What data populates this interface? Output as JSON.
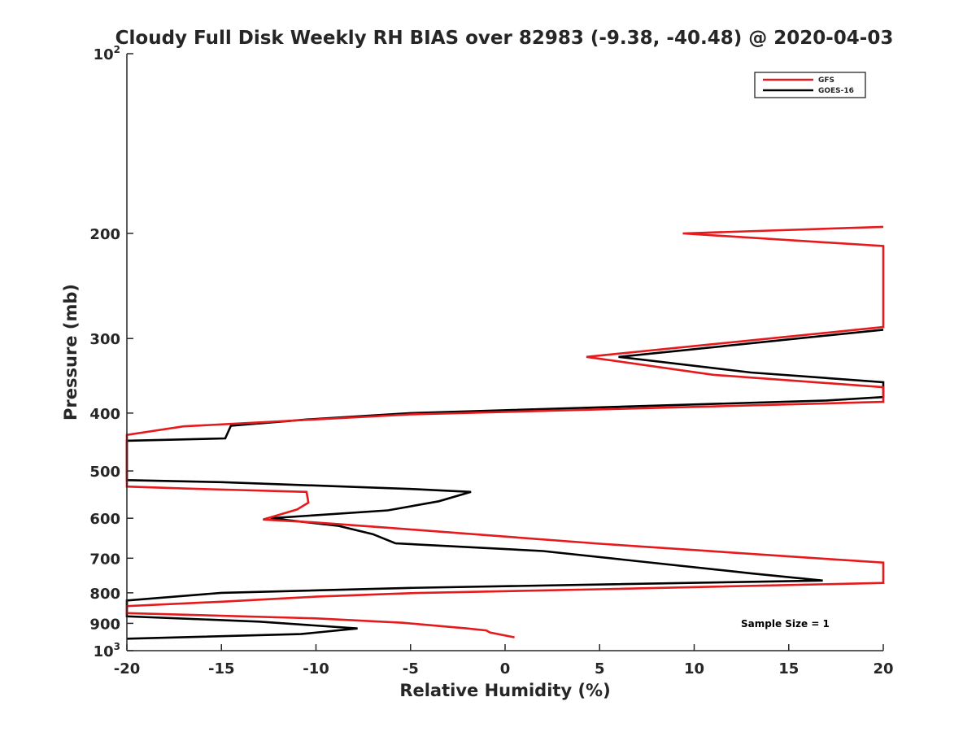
{
  "chart_data": {
    "type": "line",
    "title": "Cloudy Full Disk Weekly RH BIAS over 82983 (-9.38, -40.48) @ 2020-04-03",
    "xlabel": "Relative Humidity (%)",
    "ylabel": "Pressure (mb)",
    "xlim": [
      -20,
      20
    ],
    "ylim": [
      100,
      1000
    ],
    "y_scale": "log",
    "y_reversed": true,
    "grid": false,
    "x_ticks": [
      "-20",
      "-15",
      "-10",
      "-5",
      "0",
      "5",
      "10",
      "15",
      "20"
    ],
    "y_ticks": [
      {
        "value": 100,
        "base": "10",
        "exp": "2"
      },
      {
        "value": 200,
        "label": "200"
      },
      {
        "value": 300,
        "label": "300"
      },
      {
        "value": 400,
        "label": "400"
      },
      {
        "value": 500,
        "label": "500"
      },
      {
        "value": 600,
        "label": "600"
      },
      {
        "value": 700,
        "label": "700"
      },
      {
        "value": 800,
        "label": "800"
      },
      {
        "value": 900,
        "label": "900"
      },
      {
        "value": 1000,
        "base": "10",
        "exp": "3"
      }
    ],
    "legend": {
      "position": "top-right"
    },
    "annotation": "Sample Size = 1",
    "series": [
      {
        "name": "GFS",
        "color": "#e41a1c",
        "points": [
          [
            20,
            195
          ],
          [
            9.4,
            200
          ],
          [
            20,
            210
          ],
          [
            20,
            287
          ],
          [
            4.3,
            322
          ],
          [
            11,
            345
          ],
          [
            20,
            362
          ],
          [
            20,
            383
          ],
          [
            -5,
            402
          ],
          [
            -14.5,
            417
          ],
          [
            -17,
            421
          ],
          [
            -20,
            435
          ],
          [
            -20,
            531
          ],
          [
            -17,
            535
          ],
          [
            -10.5,
            542
          ],
          [
            -10.4,
            565
          ],
          [
            -11,
            580
          ],
          [
            -12.8,
            603
          ],
          [
            -10,
            610
          ],
          [
            -6,
            623
          ],
          [
            5,
            662
          ],
          [
            17,
            702
          ],
          [
            20,
            712
          ],
          [
            20,
            770
          ],
          [
            5,
            789
          ],
          [
            -5,
            801
          ],
          [
            -10,
            812
          ],
          [
            -15,
            828
          ],
          [
            -20,
            842
          ],
          [
            -20,
            865
          ],
          [
            -10,
            883
          ],
          [
            -5.4,
            898
          ],
          [
            -2,
            918
          ],
          [
            -1,
            925
          ],
          [
            -0.8,
            932
          ],
          [
            0.5,
            950
          ]
        ]
      },
      {
        "name": "GOES-16",
        "color": "#000000",
        "points": [
          [
            20,
            290
          ],
          [
            6,
            322
          ],
          [
            13,
            342
          ],
          [
            20,
            355
          ],
          [
            20,
            376
          ],
          [
            17,
            381
          ],
          [
            -5,
            400
          ],
          [
            -10.5,
            410
          ],
          [
            -14.5,
            420
          ],
          [
            -14.8,
            441
          ],
          [
            -20,
            445
          ],
          [
            -20,
            518
          ],
          [
            -15,
            522
          ],
          [
            -5,
            536
          ],
          [
            -1.8,
            542
          ],
          [
            -3.5,
            562
          ],
          [
            -6.2,
            582
          ],
          [
            -12.4,
            600
          ],
          [
            -8.8,
            618
          ],
          [
            -7,
            638
          ],
          [
            -5.8,
            661
          ],
          [
            2,
            681
          ],
          [
            13,
            742
          ],
          [
            16.8,
            763
          ],
          [
            -5,
            785
          ],
          [
            -15,
            800
          ],
          [
            -20,
            824
          ],
          [
            -20,
            876
          ],
          [
            -13,
            894
          ],
          [
            -7.8,
            918
          ],
          [
            -10.8,
            938
          ],
          [
            -20,
            955
          ]
        ]
      }
    ]
  }
}
